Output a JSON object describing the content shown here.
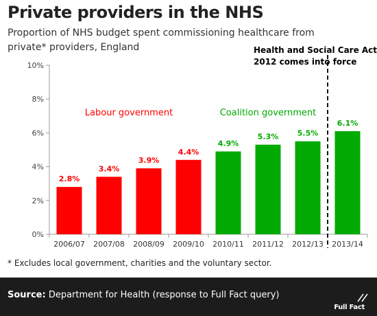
{
  "header": {
    "title": "Private providers in the NHS",
    "subtitle": "Proportion of NHS budget spent commissioning healthcare from private* providers, England"
  },
  "chart_data": {
    "type": "bar",
    "categories": [
      "2006/07",
      "2007/08",
      "2008/09",
      "2009/10",
      "2010/11",
      "2011/12",
      "2012/13",
      "2013/14"
    ],
    "values": [
      2.8,
      3.4,
      3.9,
      4.4,
      4.9,
      5.3,
      5.5,
      6.1
    ],
    "data_labels": [
      "2.8%",
      "3.4%",
      "3.9%",
      "4.4%",
      "4.9%",
      "5.3%",
      "5.5%",
      "6.1%"
    ],
    "bar_colors": [
      "#ff0000",
      "#ff0000",
      "#ff0000",
      "#ff0000",
      "#00aa00",
      "#00aa00",
      "#00aa00",
      "#00aa00"
    ],
    "ylim": [
      0,
      10
    ],
    "yticks": [
      0,
      2,
      4,
      6,
      8,
      10
    ],
    "ytick_labels": [
      "0%",
      "2%",
      "4%",
      "6%",
      "8%",
      "10%"
    ],
    "grid": false,
    "annotations": [
      {
        "text": "Labour government",
        "color": "#ff0000"
      },
      {
        "text": "Coalition government",
        "color": "#00aa00"
      },
      {
        "text": "Health and Social Care Act 2012 comes into force",
        "lines": [
          "Health and Social Care Act",
          "2012 comes into force"
        ],
        "color": "#000000"
      }
    ],
    "colors": {
      "labour": "#ff0000",
      "coalition": "#00aa00"
    }
  },
  "footnote": "* Excludes local government, charities and the voluntary sector.",
  "footer": {
    "source_label": "Source:",
    "source_text": " Department for Health (response to Full Fact query)",
    "logo_text": "Full Fact"
  }
}
